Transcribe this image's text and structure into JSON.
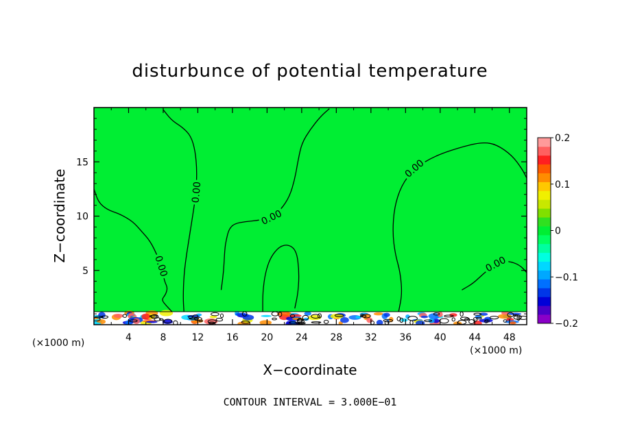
{
  "chart_data": {
    "type": "heatmap",
    "title": "disturbunce of potential temperature",
    "xlabel": "X−coordinate",
    "ylabel": "Z−coordinate",
    "x_unit": "(×1000 m)",
    "x_unit_right": "(×1000 m)",
    "xlim": [
      0,
      50
    ],
    "ylim": [
      0,
      20
    ],
    "x_ticks": [
      4,
      8,
      12,
      16,
      20,
      24,
      28,
      32,
      36,
      40,
      44,
      48
    ],
    "x_tick_labels": [
      "4",
      "8",
      "12",
      "16",
      "20",
      "24",
      "28",
      "32",
      "36",
      "40",
      "44",
      "48"
    ],
    "y_ticks": [
      5,
      10,
      15
    ],
    "y_tick_labels": [
      "5",
      "10",
      "15"
    ],
    "background_value": 0,
    "background_color": "#00ee33",
    "zero_contours": [
      {
        "label": "0.00",
        "points": [
          [
            0,
            12.5
          ],
          [
            0.5,
            11.3
          ],
          [
            1.5,
            10.6
          ],
          [
            3,
            10.2
          ],
          [
            4.5,
            9.5
          ],
          [
            5.5,
            8.6
          ],
          [
            6.5,
            7.7
          ],
          [
            7.3,
            6.4
          ],
          [
            7.8,
            5.4
          ],
          [
            8,
            4.6
          ],
          [
            8.2,
            3.9
          ],
          [
            8.5,
            3.4
          ],
          [
            8.3,
            2.8
          ],
          [
            7.8,
            2.3
          ],
          [
            8.3,
            1.8
          ],
          [
            9,
            1.2
          ]
        ]
      },
      {
        "label": "0.00",
        "points": [
          [
            8,
            19.8
          ],
          [
            9,
            18.8
          ],
          [
            10.2,
            18.2
          ],
          [
            11.2,
            17.4
          ],
          [
            11.7,
            16
          ],
          [
            11.9,
            14.2
          ],
          [
            11.8,
            12.2
          ],
          [
            11.5,
            10.5
          ],
          [
            11.1,
            8.5
          ],
          [
            10.7,
            6.5
          ],
          [
            10.4,
            4.6
          ],
          [
            10.3,
            2.5
          ],
          [
            10.4,
            1.2
          ]
        ]
      },
      {
        "label": "0.00",
        "points": [
          [
            14.7,
            3.2
          ],
          [
            15,
            5
          ],
          [
            15.1,
            6.9
          ],
          [
            15.3,
            7.9
          ],
          [
            15.6,
            8.8
          ],
          [
            16.2,
            9.3
          ],
          [
            17.5,
            9.5
          ],
          [
            19,
            9.6
          ],
          [
            20.5,
            9.9
          ],
          [
            21.6,
            10.6
          ],
          [
            22.6,
            11.8
          ],
          [
            23.2,
            13.4
          ],
          [
            23.6,
            15.2
          ],
          [
            24,
            16.7
          ],
          [
            25,
            18
          ],
          [
            26.2,
            19.2
          ],
          [
            27.2,
            19.9
          ]
        ]
      },
      {
        "label": "",
        "points": [
          [
            19.5,
            1.2
          ],
          [
            19.5,
            3
          ],
          [
            19.8,
            4.8
          ],
          [
            20.4,
            6.2
          ],
          [
            21.4,
            7.2
          ],
          [
            22.5,
            7.4
          ],
          [
            23.4,
            6.8
          ],
          [
            23.7,
            5
          ],
          [
            23.6,
            3
          ],
          [
            23.2,
            1.5
          ]
        ]
      },
      {
        "label": "0.00",
        "points": [
          [
            35.2,
            1.2
          ],
          [
            35.6,
            2.8
          ],
          [
            35.4,
            4.8
          ],
          [
            34.8,
            6.5
          ],
          [
            34.5,
            8.5
          ],
          [
            34.7,
            10.8
          ],
          [
            35.5,
            12.8
          ],
          [
            37,
            14.4
          ],
          [
            39.5,
            15.6
          ],
          [
            43,
            16.5
          ],
          [
            45,
            16.8
          ],
          [
            46.5,
            16.6
          ],
          [
            48.3,
            15.6
          ],
          [
            49.5,
            14.3
          ],
          [
            50,
            13.5
          ]
        ]
      },
      {
        "label": "0.00",
        "points": [
          [
            42.5,
            3.2
          ],
          [
            43.8,
            3.8
          ],
          [
            45,
            4.7
          ],
          [
            46.4,
            5.6
          ],
          [
            47.8,
            5.9
          ],
          [
            49.2,
            5.5
          ],
          [
            50,
            4.8
          ]
        ]
      }
    ],
    "surface_layer_top": 1.2,
    "colorbar": {
      "min": -0.2,
      "max": 0.2,
      "tick_values": [
        0.2,
        0.1,
        0,
        -0.1,
        -0.2
      ],
      "tick_labels": [
        "0.2",
        "0.1",
        "0",
        "−0.1",
        "−0.2"
      ],
      "colors": [
        "#8a00c8",
        "#4a00c8",
        "#0000d8",
        "#0036e8",
        "#0070ff",
        "#00a8ff",
        "#00d8ff",
        "#00ffe0",
        "#00ffa0",
        "#00ff60",
        "#00ee33",
        "#30e020",
        "#80e000",
        "#c8e800",
        "#f0f000",
        "#ffc800",
        "#ff8c00",
        "#ff5a00",
        "#ff2020",
        "#ff6060",
        "#ff9a9a"
      ]
    },
    "footer": "CONTOUR INTERVAL = 3.000E−01"
  }
}
